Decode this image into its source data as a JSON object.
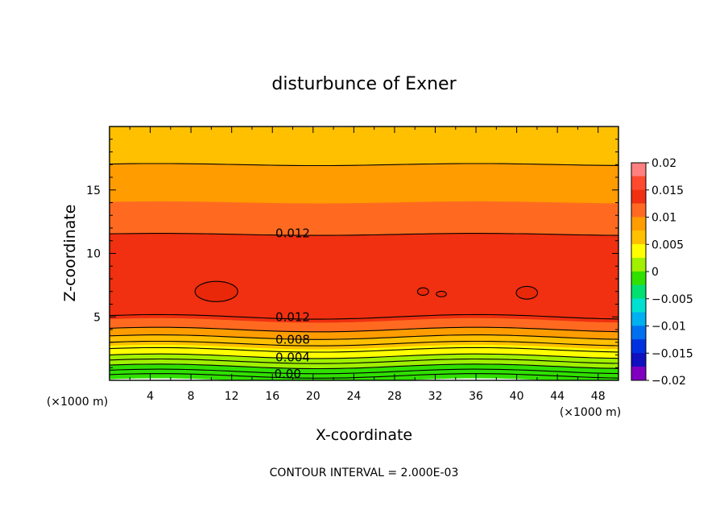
{
  "chart_data": {
    "type": "heatmap",
    "subtype": "filled-contour",
    "title": "disturbunce of Exner",
    "xlabel": "X-coordinate",
    "ylabel": "Z-coordinate",
    "x_unit": "(×1000 m)",
    "y_unit": "(×1000 m)",
    "xlim": [
      0,
      50
    ],
    "ylim": [
      0,
      20
    ],
    "x_ticks": [
      4,
      8,
      12,
      16,
      20,
      24,
      28,
      32,
      36,
      40,
      44,
      48
    ],
    "y_ticks": [
      5,
      10,
      15
    ],
    "colorbar": {
      "range": [
        -0.02,
        0.02
      ],
      "tick_labels": [
        "0.02",
        "0.015",
        "0.01",
        "0.005",
        "0",
        "-0.005",
        "-0.01",
        "-0.015",
        "-0.02"
      ],
      "bands": [
        {
          "from": 0.0175,
          "to": 0.02,
          "color": "#ff8080"
        },
        {
          "from": 0.015,
          "to": 0.0175,
          "color": "#ff4a30"
        },
        {
          "from": 0.0125,
          "to": 0.015,
          "color": "#f03010"
        },
        {
          "from": 0.01,
          "to": 0.0125,
          "color": "#ff6a20"
        },
        {
          "from": 0.0075,
          "to": 0.01,
          "color": "#ff9c00"
        },
        {
          "from": 0.005,
          "to": 0.0075,
          "color": "#ffc000"
        },
        {
          "from": 0.0025,
          "to": 0.005,
          "color": "#ffff00"
        },
        {
          "from": 0.0,
          "to": 0.0025,
          "color": "#a0f000"
        },
        {
          "from": -0.0025,
          "to": 0.0,
          "color": "#30e000"
        },
        {
          "from": -0.005,
          "to": -0.0025,
          "color": "#00e070"
        },
        {
          "from": -0.0075,
          "to": -0.005,
          "color": "#00e0d0"
        },
        {
          "from": -0.01,
          "to": -0.0075,
          "color": "#00b0f0"
        },
        {
          "from": -0.0125,
          "to": -0.01,
          "color": "#0070f0"
        },
        {
          "from": -0.015,
          "to": -0.0125,
          "color": "#0030e0"
        },
        {
          "from": -0.0175,
          "to": -0.015,
          "color": "#1010c0"
        },
        {
          "from": -0.02,
          "to": -0.0175,
          "color": "#8000c0"
        }
      ]
    },
    "contour_labels": [
      {
        "text": "0.012",
        "x": 18,
        "z": 11.6
      },
      {
        "text": "0.012",
        "x": 18,
        "z": 5.0
      },
      {
        "text": "0.008",
        "x": 18,
        "z": 3.2
      },
      {
        "text": "0.004",
        "x": 18,
        "z": 1.8
      },
      {
        "text": "0.00",
        "x": 17.5,
        "z": 0.5
      }
    ],
    "fields": [
      {
        "z_top": 20.0,
        "z_bottom": 17.0,
        "value": 0.006
      },
      {
        "z_top": 17.0,
        "z_bottom": 14.0,
        "value": 0.009
      },
      {
        "z_top": 14.0,
        "z_bottom": 11.5,
        "value": 0.011
      },
      {
        "z_top": 11.5,
        "z_bottom": 9.0,
        "value": 0.013
      },
      {
        "z_top": 9.0,
        "z_bottom": 5.5,
        "value": 0.0145
      },
      {
        "z_top": 5.5,
        "z_bottom": 4.7,
        "value": 0.013
      },
      {
        "z_top": 4.7,
        "z_bottom": 4.0,
        "value": 0.011
      },
      {
        "z_top": 4.0,
        "z_bottom": 3.4,
        "value": 0.009
      },
      {
        "z_top": 3.4,
        "z_bottom": 2.6,
        "value": 0.006
      },
      {
        "z_top": 2.6,
        "z_bottom": 1.9,
        "value": 0.004
      },
      {
        "z_top": 1.9,
        "z_bottom": 1.1,
        "value": 0.002
      },
      {
        "z_top": 1.1,
        "z_bottom": 0.0,
        "value": -0.001
      }
    ],
    "closed_contours": [
      {
        "x": 10.5,
        "z": 7.0,
        "rx": 2.1,
        "rz": 0.8
      },
      {
        "x": 30.8,
        "z": 7.0,
        "rx": 0.55,
        "rz": 0.3
      },
      {
        "x": 32.6,
        "z": 6.8,
        "rx": 0.5,
        "rz": 0.22
      },
      {
        "x": 41.0,
        "z": 6.9,
        "rx": 1.05,
        "rz": 0.5
      }
    ],
    "footer": "CONTOUR INTERVAL = 2.000E-03"
  }
}
